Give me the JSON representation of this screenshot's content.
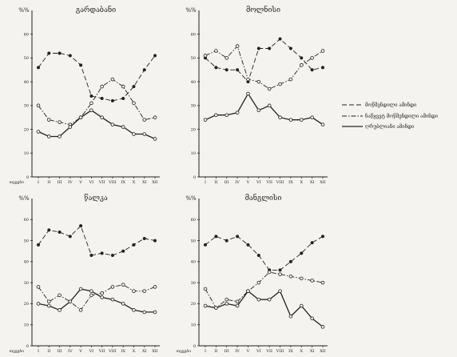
{
  "chart_data": [
    {
      "type": "line",
      "title": "გარდაბანი",
      "ylabel": "%%",
      "xlabel": "თვეები",
      "categories": [
        "I",
        "II",
        "III",
        "IV",
        "V",
        "VI",
        "VII",
        "VIII",
        "IX",
        "X",
        "XI",
        "XII"
      ],
      "yticks": [
        0,
        10,
        20,
        30,
        40,
        50,
        60
      ],
      "ylim": [
        0,
        70
      ],
      "series": [
        {
          "name": "მოწმენდილი ამინდი",
          "style": "dashed",
          "marker": "dot",
          "values": [
            46,
            52,
            52,
            51,
            47,
            34,
            33,
            32,
            33,
            38,
            45,
            51
          ]
        },
        {
          "name": "ნაწყვეტ მოწმენდილი ამინდი",
          "style": "dashdot",
          "marker": "circle",
          "values": [
            30,
            24,
            23,
            22,
            25,
            31,
            38,
            41,
            38,
            31,
            24,
            25
          ]
        },
        {
          "name": "ღრუბლიანი ამინდი",
          "style": "solid",
          "marker": "circle",
          "values": [
            19,
            17,
            17,
            21,
            25,
            28,
            25,
            22,
            21,
            18,
            18,
            16
          ]
        }
      ]
    },
    {
      "type": "line",
      "title": "მოლნისი",
      "ylabel": "%%",
      "xlabel": "",
      "categories": [
        "I",
        "II",
        "III",
        "IV",
        "V",
        "VI",
        "VII",
        "VIII",
        "IX",
        "X",
        "XI",
        "XII"
      ],
      "yticks": [
        0,
        10,
        20,
        30,
        40,
        50,
        60
      ],
      "ylim": [
        0,
        70
      ],
      "series": [
        {
          "name": "მოწმენდილი ამინდი",
          "style": "dashed",
          "marker": "dot",
          "values": [
            50,
            46,
            45,
            45,
            40,
            54,
            54,
            58,
            54,
            50,
            45,
            46
          ]
        },
        {
          "name": "ნაწყვეტ მოწმენდილი ამინდი",
          "style": "dashdot",
          "marker": "circle",
          "values": [
            51,
            53,
            50,
            55,
            41,
            40,
            37,
            39,
            41,
            47,
            50,
            53
          ]
        },
        {
          "name": "ღრუბლიანი ამინდი",
          "style": "solid",
          "marker": "circle",
          "values": [
            24,
            26,
            26,
            27,
            35,
            28,
            30,
            25,
            24,
            24,
            25,
            22
          ]
        }
      ]
    },
    {
      "type": "line",
      "title": "წალკა",
      "ylabel": "%%",
      "xlabel": "თვეები",
      "categories": [
        "I",
        "II",
        "III",
        "IV",
        "V",
        "VI",
        "VII",
        "VIII",
        "IX",
        "X",
        "XI",
        "XII"
      ],
      "yticks": [
        0,
        10,
        20,
        30,
        40,
        50,
        60
      ],
      "ylim": [
        0,
        70
      ],
      "series": [
        {
          "name": "მოწმენდილი ამინდი",
          "style": "dashed",
          "marker": "dot",
          "values": [
            48,
            55,
            54,
            52,
            57,
            43,
            44,
            43,
            45,
            48,
            51,
            50
          ]
        },
        {
          "name": "ნაწყვეტ მოწმენდილი ამინდი",
          "style": "dashdot",
          "marker": "circle",
          "values": [
            28,
            21,
            24,
            21,
            17,
            24,
            25,
            28,
            29,
            26,
            26,
            28
          ]
        },
        {
          "name": "ღრუბლიანი ამინდი",
          "style": "solid",
          "marker": "circle",
          "values": [
            20,
            19,
            17,
            21,
            27,
            26,
            23,
            22,
            20,
            17,
            16,
            16
          ]
        }
      ]
    },
    {
      "type": "line",
      "title": "მანგლისი",
      "ylabel": "%%",
      "xlabel": "თვეები",
      "categories": [
        "I",
        "II",
        "III",
        "IV",
        "V",
        "VI",
        "VII",
        "VIII",
        "IX",
        "X",
        "XI",
        "XII"
      ],
      "yticks": [
        0,
        10,
        20,
        30,
        40,
        50,
        60
      ],
      "ylim": [
        0,
        70
      ],
      "series": [
        {
          "name": "მოწმენდილი ამინდი",
          "style": "dashed",
          "marker": "dot",
          "values": [
            48,
            52,
            50,
            52,
            48,
            43,
            36,
            36,
            40,
            44,
            49,
            52
          ]
        },
        {
          "name": "ნაწყვეტ მოწმენდილი ამინდი",
          "style": "dashdot",
          "marker": "circle",
          "values": [
            27,
            18,
            22,
            21,
            26,
            30,
            35,
            34,
            33,
            32,
            31,
            30
          ]
        },
        {
          "name": "ღრუბლიანი ამინდი",
          "style": "solid",
          "marker": "circle",
          "values": [
            19,
            18,
            20,
            19,
            26,
            22,
            22,
            26,
            14,
            19,
            13,
            9
          ]
        }
      ]
    }
  ],
  "legend": {
    "placement": "right",
    "items": [
      {
        "label": "მოწმენდილი ამინდი",
        "style": "dashed"
      },
      {
        "label": "ნაწყვეტ მოწმენდილი ამინდი",
        "style": "dashdot"
      },
      {
        "label": "ღრუბლიანი ამინდი",
        "style": "solid"
      }
    ]
  }
}
